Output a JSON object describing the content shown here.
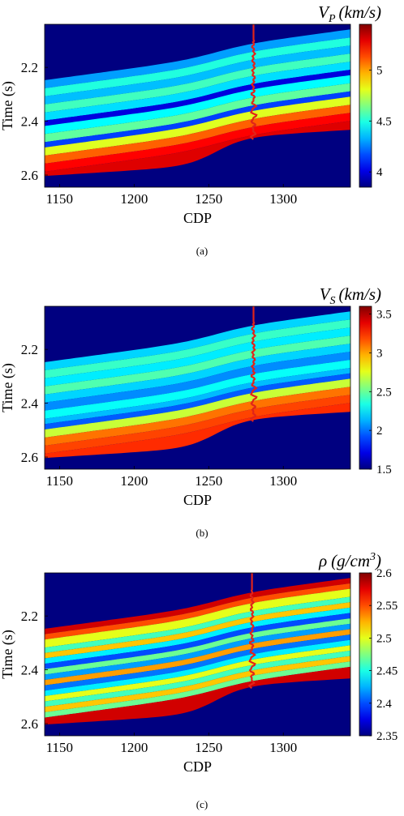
{
  "chart_data": [
    {
      "type": "heatmap",
      "caption": "(a)",
      "colorbar_label": "V_P (km/s)",
      "colorbar_label_main": "V",
      "colorbar_label_sub": "P",
      "colorbar_label_unit": "(km/s)",
      "xlabel": "CDP",
      "ylabel": "Time (s)",
      "xlim": [
        1140,
        1345
      ],
      "ylim": [
        2.04,
        2.645
      ],
      "x_ticks": [
        1150,
        1200,
        1250,
        1300
      ],
      "y_ticks": [
        2.2,
        2.4,
        2.6
      ],
      "colorbar_range": [
        3.85,
        5.45
      ],
      "colorbar_ticks": [
        "4",
        "4.5",
        "5"
      ],
      "colorbar_tick_values": [
        4,
        4.5,
        5
      ],
      "background_value": 3.85,
      "well_log_cdp": 1280,
      "layers": [
        {
          "offset": 0.0,
          "value": 4.3
        },
        {
          "offset": 0.03,
          "value": 4.5
        },
        {
          "offset": 0.06,
          "value": 4.35
        },
        {
          "offset": 0.09,
          "value": 4.55
        },
        {
          "offset": 0.12,
          "value": 4.4
        },
        {
          "offset": 0.15,
          "value": 4.0
        },
        {
          "offset": 0.17,
          "value": 4.45
        },
        {
          "offset": 0.2,
          "value": 4.6
        },
        {
          "offset": 0.23,
          "value": 4.15
        },
        {
          "offset": 0.25,
          "value": 4.8
        },
        {
          "offset": 0.28,
          "value": 5.1
        },
        {
          "offset": 0.31,
          "value": 5.25
        },
        {
          "offset": 0.34,
          "value": 5.3
        }
      ]
    },
    {
      "type": "heatmap",
      "caption": "(b)",
      "colorbar_label": "V_S (km/s)",
      "colorbar_label_main": "V",
      "colorbar_label_sub": "S",
      "colorbar_label_unit": "(km/s)",
      "xlabel": "CDP",
      "ylabel": "Time (s)",
      "xlim": [
        1140,
        1345
      ],
      "ylim": [
        2.04,
        2.645
      ],
      "x_ticks": [
        1150,
        1200,
        1250,
        1300
      ],
      "y_ticks": [
        2.2,
        2.4,
        2.6
      ],
      "colorbar_range": [
        1.5,
        3.6
      ],
      "colorbar_ticks": [
        "1.5",
        "2",
        "2.5",
        "3",
        "3.5"
      ],
      "colorbar_tick_values": [
        1.5,
        2,
        2.5,
        3,
        3.5
      ],
      "background_value": 1.5,
      "well_log_cdp": 1280,
      "layers": [
        {
          "offset": 0.0,
          "value": 2.2
        },
        {
          "offset": 0.03,
          "value": 2.4
        },
        {
          "offset": 0.06,
          "value": 2.25
        },
        {
          "offset": 0.09,
          "value": 2.45
        },
        {
          "offset": 0.12,
          "value": 2.2
        },
        {
          "offset": 0.15,
          "value": 2.05
        },
        {
          "offset": 0.18,
          "value": 2.3
        },
        {
          "offset": 0.21,
          "value": 2.15
        },
        {
          "offset": 0.23,
          "value": 1.95
        },
        {
          "offset": 0.25,
          "value": 2.7
        },
        {
          "offset": 0.28,
          "value": 3.1
        },
        {
          "offset": 0.31,
          "value": 3.2
        },
        {
          "offset": 0.34,
          "value": 3.25
        }
      ]
    },
    {
      "type": "heatmap",
      "caption": "(c)",
      "colorbar_label": "ρ (g/cm3)",
      "colorbar_label_main": "ρ",
      "colorbar_label_unit": "(g/cm",
      "colorbar_label_sup": "3",
      "colorbar_label_close": ")",
      "xlabel": "CDP",
      "ylabel": "Time (s)",
      "xlim": [
        1140,
        1345
      ],
      "ylim": [
        2.04,
        2.645
      ],
      "x_ticks": [
        1150,
        1200,
        1250,
        1300
      ],
      "y_ticks": [
        2.2,
        2.4,
        2.6
      ],
      "colorbar_range": [
        2.35,
        2.6
      ],
      "colorbar_ticks": [
        "2.35",
        "2.4",
        "2.45",
        "2.5",
        "2.55",
        "2.6"
      ],
      "colorbar_tick_values": [
        2.35,
        2.4,
        2.45,
        2.5,
        2.55,
        2.6
      ],
      "background_value": 2.35,
      "well_log_cdp": 1279,
      "layers": [
        {
          "offset": 0.0,
          "value": 2.58
        },
        {
          "offset": 0.02,
          "value": 2.55
        },
        {
          "offset": 0.04,
          "value": 2.5
        },
        {
          "offset": 0.07,
          "value": 2.46
        },
        {
          "offset": 0.09,
          "value": 2.52
        },
        {
          "offset": 0.11,
          "value": 2.44
        },
        {
          "offset": 0.13,
          "value": 2.4
        },
        {
          "offset": 0.15,
          "value": 2.47
        },
        {
          "offset": 0.17,
          "value": 2.42
        },
        {
          "offset": 0.19,
          "value": 2.53
        },
        {
          "offset": 0.21,
          "value": 2.41
        },
        {
          "offset": 0.23,
          "value": 2.44
        },
        {
          "offset": 0.25,
          "value": 2.5
        },
        {
          "offset": 0.27,
          "value": 2.46
        },
        {
          "offset": 0.29,
          "value": 2.52
        },
        {
          "offset": 0.31,
          "value": 2.47
        },
        {
          "offset": 0.33,
          "value": 2.58
        }
      ]
    }
  ]
}
